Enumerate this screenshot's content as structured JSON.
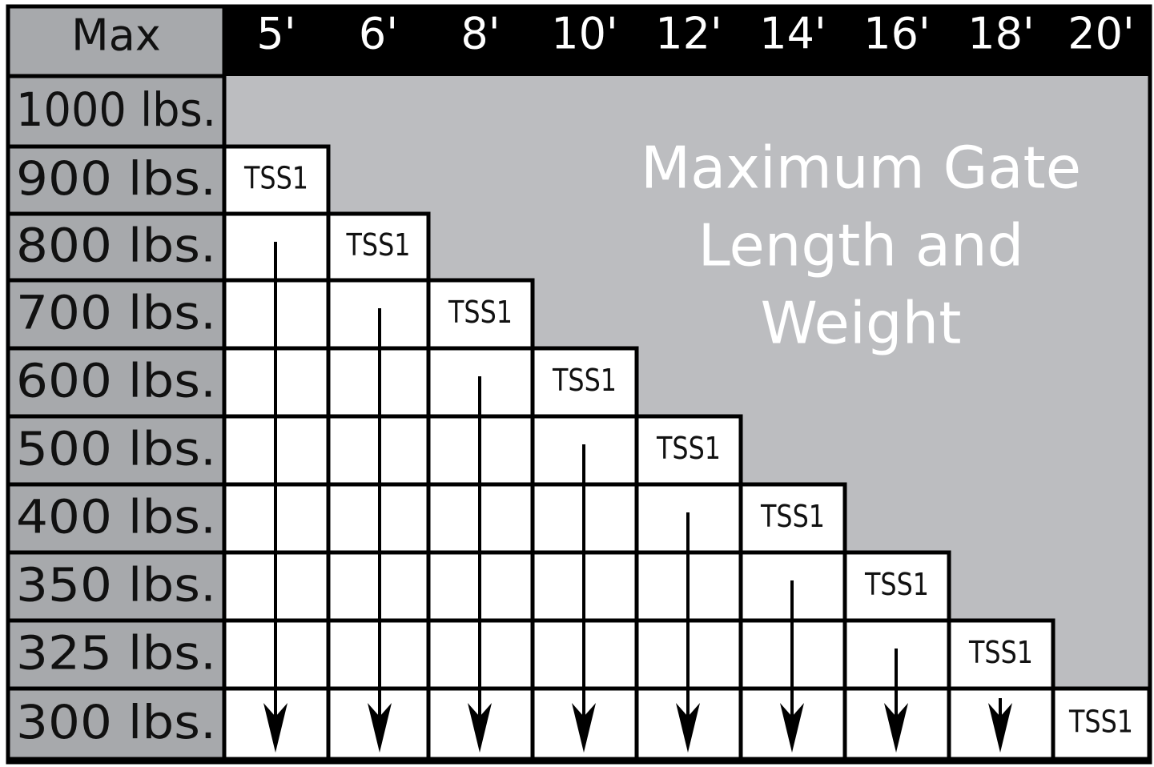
{
  "table": {
    "corner": "Max",
    "columns": [
      "5'",
      "6'",
      "8'",
      "10'",
      "12'",
      "14'",
      "16'",
      "18'",
      "20'"
    ],
    "rows": [
      {
        "label": "1000 lbs."
      },
      {
        "label": "900 lbs.",
        "model": "TSS1"
      },
      {
        "label": "800 lbs.",
        "model": "TSS1"
      },
      {
        "label": "700 lbs.",
        "model": "TSS1"
      },
      {
        "label": "600 lbs.",
        "model": "TSS1"
      },
      {
        "label": "500 lbs.",
        "model": "TSS1"
      },
      {
        "label": "400 lbs.",
        "model": "TSS1"
      },
      {
        "label": "350 lbs.",
        "model": "TSS1"
      },
      {
        "label": "325 lbs.",
        "model": "TSS1"
      },
      {
        "label": "300 lbs.",
        "model": "TSS1"
      }
    ],
    "title_lines": [
      "Maximum Gate",
      "Length and",
      "Weight"
    ]
  }
}
